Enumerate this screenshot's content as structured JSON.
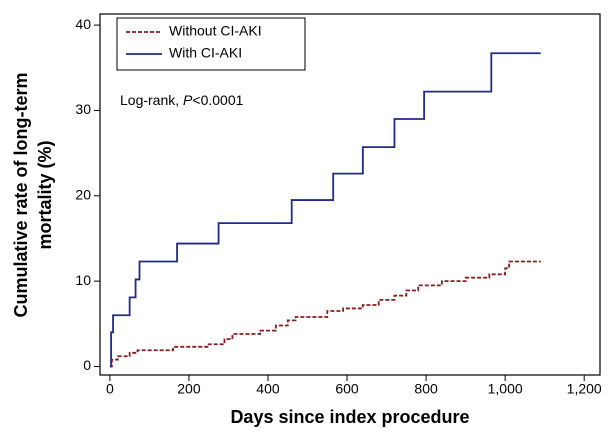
{
  "chart_data": {
    "type": "step",
    "x_label": "Days since index procedure",
    "y_label": [
      "Cumulative rate of long-term",
      "mortality (%)"
    ],
    "annotation": {
      "prefix": "Log-rank, ",
      "italic": "P",
      "suffix": "<0.0001"
    },
    "xlim": [
      -25,
      1240
    ],
    "ylim": [
      -1,
      41.3
    ],
    "xticks": [
      0,
      200,
      400,
      600,
      800,
      {
        "value": 1000,
        "label": "1,000"
      },
      {
        "value": 1200,
        "label": "1,200"
      }
    ],
    "yticks": [
      0,
      10,
      20,
      30,
      40
    ],
    "legend": "top-left",
    "series": [
      {
        "name": "Without CI-AKI",
        "color": "#8b1c1c",
        "dash": true,
        "x": [
          0,
          5,
          20,
          50,
          70,
          160,
          250,
          290,
          310,
          380,
          420,
          450,
          470,
          550,
          590,
          640,
          680,
          720,
          750,
          780,
          840,
          900,
          960,
          1000,
          1010,
          1090
        ],
        "values": [
          0,
          0.8,
          1.2,
          1.6,
          1.9,
          2.3,
          2.6,
          3.2,
          3.8,
          4.2,
          4.8,
          5.4,
          5.8,
          6.5,
          6.8,
          7.2,
          7.8,
          8.3,
          8.9,
          9.5,
          10.0,
          10.4,
          10.8,
          11.5,
          12.3,
          12.3
        ]
      },
      {
        "name": "With CI-AKI",
        "color": "#1f2a8c",
        "dash": false,
        "x": [
          0,
          3,
          8,
          50,
          65,
          75,
          170,
          275,
          460,
          565,
          640,
          720,
          795,
          965,
          1090
        ],
        "values": [
          0,
          4,
          6,
          8.1,
          10.2,
          12.3,
          14.4,
          16.8,
          19.5,
          22.6,
          25.7,
          29,
          32.2,
          36.7,
          36.7
        ]
      }
    ]
  }
}
